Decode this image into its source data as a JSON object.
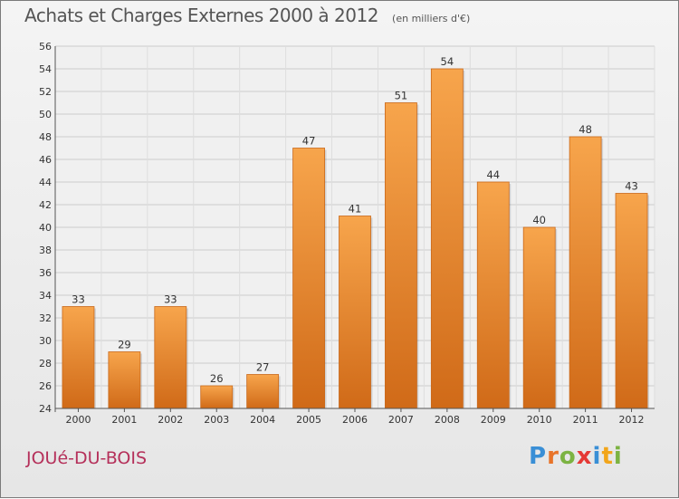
{
  "header": {
    "title": "Achats et Charges Externes 2000 à 2012",
    "subtitle": "(en milliers d'€)"
  },
  "footer": {
    "commune": "JOUé-DU-BOIS",
    "logo_letters": [
      "P",
      "r",
      "o",
      "x",
      "i",
      "t",
      "i"
    ],
    "logo_colors": [
      "#3a8fd6",
      "#e8742a",
      "#7cb342",
      "#e53935",
      "#3a8fd6",
      "#f2a51a",
      "#7cb342"
    ]
  },
  "chart_data": {
    "type": "bar",
    "title": "Achats et Charges Externes 2000 à 2012",
    "subtitle": "(en milliers d'€)",
    "xlabel": "",
    "ylabel": "",
    "categories": [
      "2000",
      "2001",
      "2002",
      "2003",
      "2004",
      "2005",
      "2006",
      "2007",
      "2008",
      "2009",
      "2010",
      "2011",
      "2012"
    ],
    "values": [
      33,
      29,
      33,
      26,
      27,
      47,
      41,
      51,
      54,
      44,
      40,
      48,
      43
    ],
    "ylim": [
      24,
      56
    ],
    "yticks": [
      24,
      26,
      28,
      30,
      32,
      34,
      36,
      38,
      40,
      42,
      44,
      46,
      48,
      50,
      52,
      54,
      56
    ],
    "grid": true,
    "bar_color": "#f39c3c",
    "bar_color_dark": "#d2741c",
    "data_labels": true
  }
}
